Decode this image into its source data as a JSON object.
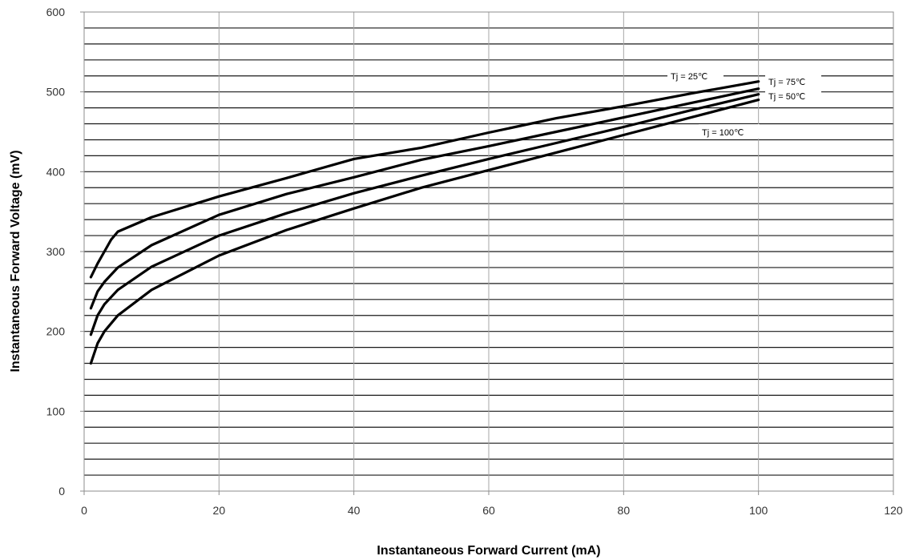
{
  "chart_data": {
    "type": "line",
    "title": "",
    "xlabel": "Instantaneous Forward Current (mA)",
    "ylabel": "Instantaneous Forward Voltage (mV)",
    "xlim": [
      0,
      120
    ],
    "ylim": [
      0,
      600
    ],
    "x_ticks": [
      0,
      20,
      40,
      60,
      80,
      100,
      120
    ],
    "y_ticks": [
      0,
      100,
      200,
      300,
      400,
      500,
      600
    ],
    "y_minor_step": 20,
    "grid": true,
    "line_color": "#000000",
    "series": [
      {
        "name": "Tj = 25℃",
        "x": [
          1,
          2,
          3,
          4,
          5,
          10,
          20,
          30,
          40,
          50,
          60,
          70,
          80,
          90,
          100
        ],
        "y": [
          268,
          285,
          300,
          315,
          325,
          343,
          369,
          392,
          416,
          430,
          449,
          467,
          482,
          498,
          513
        ]
      },
      {
        "name": "Tj = 50℃",
        "x": [
          1,
          2,
          3,
          5,
          10,
          20,
          30,
          40,
          50,
          60,
          70,
          80,
          90,
          100
        ],
        "y": [
          229,
          250,
          262,
          280,
          308,
          346,
          372,
          393,
          415,
          432,
          450,
          468,
          486,
          504
        ]
      },
      {
        "name": "Tj = 75℃",
        "x": [
          1,
          2,
          3,
          5,
          10,
          20,
          30,
          40,
          50,
          60,
          70,
          80,
          90,
          100
        ],
        "y": [
          196,
          220,
          234,
          252,
          281,
          320,
          348,
          373,
          395,
          416,
          436,
          456,
          477,
          497
        ]
      },
      {
        "name": "Tj = 100℃",
        "x": [
          1,
          2,
          3,
          5,
          10,
          20,
          30,
          40,
          50,
          60,
          70,
          80,
          90,
          100
        ],
        "y": [
          160,
          185,
          200,
          220,
          252,
          295,
          327,
          354,
          380,
          402,
          424,
          446,
          468,
          490
        ]
      }
    ]
  }
}
